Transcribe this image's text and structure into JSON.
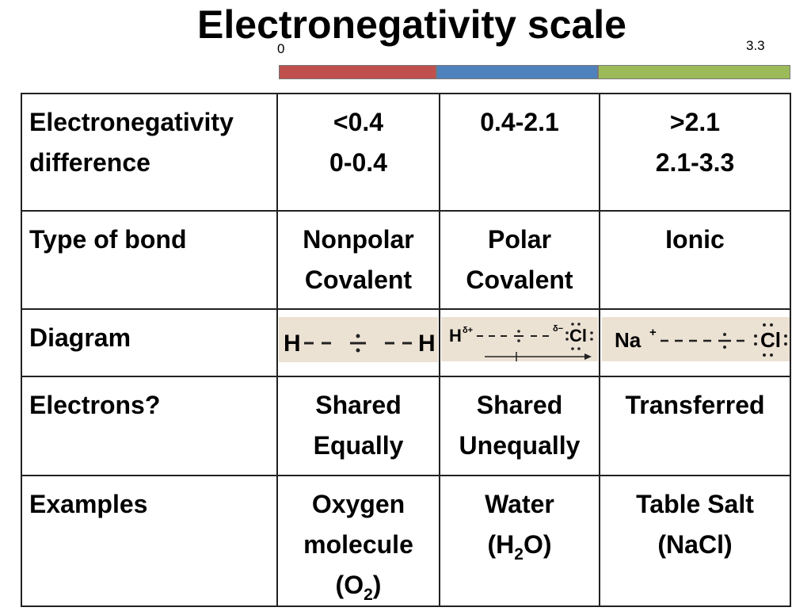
{
  "header": {
    "title": "Electronegativity scale"
  },
  "scale": {
    "min_label": "0",
    "max_label": "3.3"
  },
  "table": {
    "rows": [
      [
        [
          "Electronegativity",
          "difference"
        ],
        [
          "<0.4",
          "0-0.4"
        ],
        [
          "0.4-2.1"
        ],
        [
          ">2.1",
          "2.1-3.3"
        ]
      ],
      [
        [
          "Type of bond"
        ],
        [
          "Nonpolar",
          "Covalent"
        ],
        [
          "Polar",
          "Covalent"
        ],
        [
          "Ionic"
        ]
      ],
      [
        [
          "Diagram"
        ]
      ],
      [
        [
          "Electrons?"
        ],
        [
          "Shared",
          "Equally"
        ],
        [
          "Shared",
          "Unequally"
        ],
        [
          "Transferred"
        ]
      ],
      [
        [
          "Examples"
        ],
        [
          "Oxygen",
          "molecule",
          {
            "pre": "(O",
            "sub": "2",
            "post": ")"
          }
        ],
        [
          "Water",
          {
            "pre": "(H",
            "sub": "2",
            "post": "O)"
          }
        ],
        [
          "Table Salt",
          "(NaCl)"
        ]
      ]
    ],
    "diagrams": [
      {
        "left": "H",
        "right": "H"
      },
      {
        "left": "H",
        "left_charge": "δ+",
        "right_charge": "δ−",
        "right": "Cl"
      },
      {
        "left": "Na",
        "left_charge": "+",
        "right": "Cl"
      }
    ]
  }
}
